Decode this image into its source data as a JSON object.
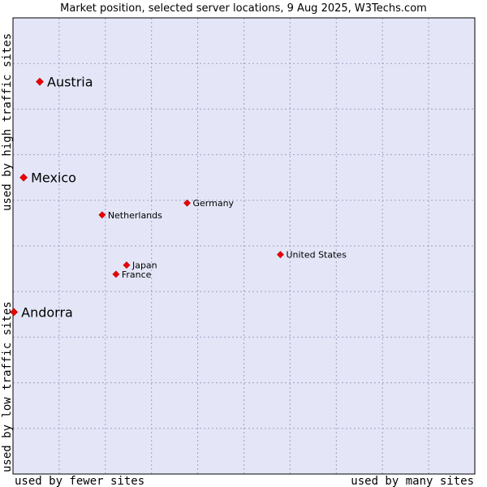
{
  "chart_data": {
    "type": "scatter",
    "title": "Market position, selected server locations, 9 Aug 2025, W3Techs.com",
    "xlabel_left": "used by fewer sites",
    "xlabel_right": "used by many sites",
    "ylabel_bottom": "used by low traffic sites",
    "ylabel_top": "used by high traffic sites",
    "xlim": [
      0,
      100
    ],
    "ylim": [
      0,
      100
    ],
    "grid": true,
    "colors": {
      "plot_bg": "#e4e6f8",
      "point": "#ee0000",
      "grid": "#a0a0c0",
      "border": "#000000"
    },
    "points": [
      {
        "name": "Austria",
        "x": 5.8,
        "y": 86.0,
        "size": "big"
      },
      {
        "name": "Mexico",
        "x": 2.3,
        "y": 65.0,
        "size": "big"
      },
      {
        "name": "Germany",
        "x": 37.7,
        "y": 59.4,
        "size": "small"
      },
      {
        "name": "Netherlands",
        "x": 19.3,
        "y": 56.8,
        "size": "small"
      },
      {
        "name": "United States",
        "x": 57.9,
        "y": 48.1,
        "size": "small"
      },
      {
        "name": "Japan",
        "x": 24.6,
        "y": 45.8,
        "size": "small"
      },
      {
        "name": "France",
        "x": 22.3,
        "y": 43.8,
        "size": "small"
      },
      {
        "name": "Andorra",
        "x": 0.2,
        "y": 35.5,
        "size": "big"
      }
    ]
  }
}
